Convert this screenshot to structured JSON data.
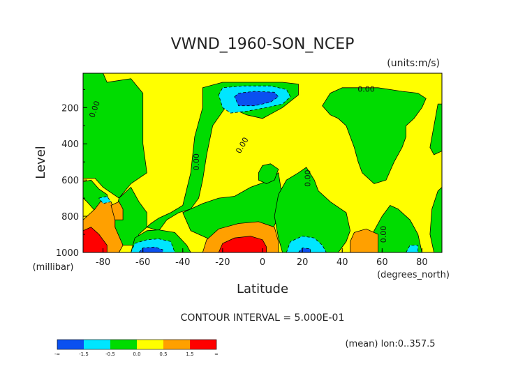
{
  "chart_data": {
    "type": "contour",
    "title": "VWND_1960-SON_NCEP",
    "units_label": "(units:m/s)",
    "xlabel": "Latitude",
    "x_units_label": "(degrees_north)",
    "ylabel": "Level",
    "y_units_label": "(millibar)",
    "xlim": [
      -90,
      90
    ],
    "ylim": [
      1000,
      10
    ],
    "y_inverted": true,
    "x_ticks": [
      -80,
      -60,
      -40,
      -20,
      0,
      20,
      40,
      60,
      80
    ],
    "y_ticks": [
      200,
      400,
      600,
      800,
      1000
    ],
    "contour_interval_text": "CONTOUR INTERVAL = 5.000E-01",
    "footer_text": "(mean) lon:0..357.5",
    "colorbar": {
      "bins": [
        {
          "color": "#0a50f0"
        },
        {
          "color": "#00e6ff"
        },
        {
          "color": "#00dc00"
        },
        {
          "color": "#ffff00"
        },
        {
          "color": "#ffa000"
        },
        {
          "color": "#ff0000"
        }
      ],
      "labels": [
        "-∞",
        "-1.5",
        "-0.5",
        "0.0",
        "0.5",
        "1.5",
        "∞"
      ]
    },
    "contour_labels": [
      {
        "text": "0.00",
        "lat": -84,
        "lev": 210,
        "angle": -70
      },
      {
        "text": "0.00",
        "lat": -33,
        "lev": 500,
        "angle": -90
      },
      {
        "text": "0.00",
        "lat": -10,
        "lev": 410,
        "angle": -60
      },
      {
        "text": "0.00",
        "lat": 52,
        "lev": 100,
        "angle": 0
      },
      {
        "text": "0.00",
        "lat": 23,
        "lev": 590,
        "angle": -90
      },
      {
        "text": "0.00",
        "lat": 61,
        "lev": 900,
        "angle": -90
      }
    ],
    "regions": [
      {
        "value": 0.25,
        "points": [
          [
            -90,
            10
          ],
          [
            90,
            10
          ],
          [
            90,
            1000
          ],
          [
            -90,
            1000
          ]
        ]
      },
      {
        "value": -0.25,
        "points": [
          [
            -90,
            10
          ],
          [
            -80,
            10
          ],
          [
            -78,
            60
          ],
          [
            -66,
            40
          ],
          [
            -60,
            120
          ],
          [
            -60,
            400
          ],
          [
            -58,
            560
          ],
          [
            -66,
            620
          ],
          [
            -72,
            700
          ],
          [
            -80,
            640
          ],
          [
            -84,
            590
          ],
          [
            -90,
            590
          ]
        ]
      },
      {
        "value": -0.25,
        "points": [
          [
            -90,
            610
          ],
          [
            -86,
            600
          ],
          [
            -82,
            650
          ],
          [
            -78,
            680
          ],
          [
            -76,
            760
          ],
          [
            -84,
            770
          ],
          [
            -88,
            720
          ],
          [
            -90,
            700
          ]
        ]
      },
      {
        "value": -0.25,
        "points": [
          [
            -72,
            700
          ],
          [
            -66,
            640
          ],
          [
            -62,
            720
          ],
          [
            -58,
            780
          ],
          [
            -58,
            860
          ],
          [
            -52,
            880
          ],
          [
            -48,
            820
          ],
          [
            -42,
            780
          ],
          [
            -36,
            760
          ],
          [
            -32,
            700
          ],
          [
            -30,
            600
          ],
          [
            -28,
            460
          ],
          [
            -25,
            300
          ],
          [
            -18,
            190
          ],
          [
            -8,
            240
          ],
          [
            0,
            260
          ],
          [
            10,
            200
          ],
          [
            18,
            130
          ],
          [
            18,
            70
          ],
          [
            10,
            60
          ],
          [
            -20,
            60
          ],
          [
            -30,
            90
          ],
          [
            -30,
            200
          ],
          [
            -34,
            360
          ],
          [
            -36,
            560
          ],
          [
            -40,
            740
          ],
          [
            -46,
            780
          ],
          [
            -52,
            810
          ],
          [
            -56,
            840
          ],
          [
            -62,
            900
          ],
          [
            -64,
            960
          ],
          [
            -70,
            960
          ],
          [
            -74,
            880
          ],
          [
            -74,
            800
          ]
        ]
      },
      {
        "value": -0.25,
        "points": [
          [
            -66,
            1000
          ],
          [
            -64,
            920
          ],
          [
            -58,
            880
          ],
          [
            -52,
            875
          ],
          [
            -44,
            890
          ],
          [
            -38,
            960
          ],
          [
            -36,
            1000
          ]
        ]
      },
      {
        "value": -0.25,
        "points": [
          [
            -40,
            780
          ],
          [
            -30,
            730
          ],
          [
            -22,
            700
          ],
          [
            -14,
            690
          ],
          [
            -6,
            640
          ],
          [
            4,
            600
          ],
          [
            8,
            560
          ],
          [
            10,
            700
          ],
          [
            8,
            800
          ],
          [
            4,
            900
          ],
          [
            0,
            940
          ],
          [
            -18,
            950
          ],
          [
            -26,
            930
          ],
          [
            -36,
            880
          ]
        ]
      },
      {
        "value": -0.25,
        "points": [
          [
            8,
            680
          ],
          [
            12,
            600
          ],
          [
            18,
            560
          ],
          [
            22,
            530
          ],
          [
            26,
            600
          ],
          [
            28,
            660
          ],
          [
            34,
            720
          ],
          [
            42,
            780
          ],
          [
            44,
            880
          ],
          [
            42,
            940
          ],
          [
            38,
            1000
          ],
          [
            10,
            1000
          ],
          [
            8,
            920
          ],
          [
            6,
            800
          ]
        ]
      },
      {
        "value": -0.25,
        "points": [
          [
            30,
            190
          ],
          [
            34,
            120
          ],
          [
            40,
            90
          ],
          [
            58,
            90
          ],
          [
            70,
            110
          ],
          [
            78,
            120
          ],
          [
            82,
            150
          ],
          [
            80,
            200
          ],
          [
            76,
            260
          ],
          [
            72,
            300
          ],
          [
            72,
            360
          ],
          [
            70,
            420
          ],
          [
            66,
            500
          ],
          [
            62,
            600
          ],
          [
            56,
            620
          ],
          [
            50,
            560
          ],
          [
            48,
            500
          ],
          [
            46,
            420
          ],
          [
            42,
            300
          ],
          [
            38,
            260
          ],
          [
            34,
            240
          ]
        ]
      },
      {
        "value": -0.25,
        "points": [
          [
            52,
            1000
          ],
          [
            56,
            880
          ],
          [
            60,
            800
          ],
          [
            64,
            740
          ],
          [
            68,
            760
          ],
          [
            74,
            820
          ],
          [
            78,
            900
          ],
          [
            80,
            1000
          ]
        ]
      },
      {
        "value": -0.25,
        "points": [
          [
            84,
            420
          ],
          [
            86,
            300
          ],
          [
            88,
            180
          ],
          [
            90,
            180
          ],
          [
            90,
            440
          ],
          [
            86,
            460
          ]
        ]
      },
      {
        "value": -0.25,
        "points": [
          [
            86,
            1000
          ],
          [
            84,
            900
          ],
          [
            85,
            760
          ],
          [
            88,
            660
          ],
          [
            90,
            640
          ],
          [
            90,
            1000
          ]
        ]
      },
      {
        "value": -0.25,
        "points": [
          [
            -2,
            560
          ],
          [
            0,
            520
          ],
          [
            4,
            510
          ],
          [
            8,
            540
          ],
          [
            6,
            600
          ],
          [
            2,
            620
          ],
          [
            -2,
            600
          ]
        ]
      },
      {
        "value": 0.75,
        "points": [
          [
            -84,
            760
          ],
          [
            -80,
            700
          ],
          [
            -76,
            720
          ],
          [
            -74,
            780
          ],
          [
            -74,
            860
          ],
          [
            -70,
            960
          ],
          [
            -72,
            1000
          ],
          [
            -90,
            1000
          ],
          [
            -90,
            820
          ]
        ]
      },
      {
        "value": 0.75,
        "points": [
          [
            -76,
            740
          ],
          [
            -72,
            720
          ],
          [
            -70,
            760
          ],
          [
            -70,
            820
          ],
          [
            -74,
            820
          ]
        ]
      },
      {
        "value": 0.75,
        "points": [
          [
            -30,
            1000
          ],
          [
            -28,
            930
          ],
          [
            -22,
            870
          ],
          [
            -12,
            840
          ],
          [
            -2,
            830
          ],
          [
            6,
            860
          ],
          [
            8,
            940
          ],
          [
            8,
            1000
          ]
        ]
      },
      {
        "value": 0.75,
        "points": [
          [
            44,
            1000
          ],
          [
            44,
            940
          ],
          [
            46,
            890
          ],
          [
            52,
            870
          ],
          [
            58,
            900
          ],
          [
            58,
            1000
          ]
        ]
      },
      {
        "value": 1.75,
        "points": [
          [
            -90,
            880
          ],
          [
            -86,
            860
          ],
          [
            -82,
            900
          ],
          [
            -78,
            960
          ],
          [
            -78,
            1000
          ],
          [
            -90,
            1000
          ]
        ]
      },
      {
        "value": 1.75,
        "points": [
          [
            -22,
            1000
          ],
          [
            -20,
            950
          ],
          [
            -14,
            920
          ],
          [
            -6,
            910
          ],
          [
            0,
            930
          ],
          [
            2,
            970
          ],
          [
            2,
            1000
          ]
        ]
      },
      {
        "value": -0.75,
        "points": [
          [
            -22,
            130
          ],
          [
            -20,
            90
          ],
          [
            -10,
            80
          ],
          [
            4,
            80
          ],
          [
            12,
            100
          ],
          [
            14,
            140
          ],
          [
            10,
            180
          ],
          [
            2,
            200
          ],
          [
            -8,
            220
          ],
          [
            -16,
            230
          ],
          [
            -20,
            200
          ]
        ]
      },
      {
        "value": -0.75,
        "points": [
          [
            -66,
            1000
          ],
          [
            -64,
            950
          ],
          [
            -58,
            930
          ],
          [
            -52,
            925
          ],
          [
            -46,
            940
          ],
          [
            -44,
            1000
          ]
        ]
      },
      {
        "value": -0.75,
        "points": [
          [
            12,
            1000
          ],
          [
            14,
            940
          ],
          [
            20,
            910
          ],
          [
            26,
            920
          ],
          [
            30,
            960
          ],
          [
            32,
            1000
          ]
        ]
      },
      {
        "value": -0.75,
        "points": [
          [
            -82,
            700
          ],
          [
            -78,
            690
          ],
          [
            -76,
            720
          ],
          [
            -80,
            730
          ]
        ]
      },
      {
        "value": -0.75,
        "points": [
          [
            72,
            1000
          ],
          [
            74,
            960
          ],
          [
            78,
            960
          ],
          [
            78,
            1000
          ]
        ]
      },
      {
        "value": -1.75,
        "points": [
          [
            -14,
            140
          ],
          [
            -12,
            120
          ],
          [
            -4,
            110
          ],
          [
            6,
            115
          ],
          [
            8,
            140
          ],
          [
            4,
            170
          ],
          [
            -4,
            190
          ],
          [
            -12,
            190
          ]
        ]
      },
      {
        "value": -1.75,
        "points": [
          [
            -62,
            1000
          ],
          [
            -60,
            975
          ],
          [
            -54,
            970
          ],
          [
            -50,
            985
          ],
          [
            -50,
            1000
          ]
        ]
      },
      {
        "value": -1.75,
        "points": [
          [
            18,
            1000
          ],
          [
            20,
            975
          ],
          [
            24,
            980
          ],
          [
            24,
            1000
          ]
        ]
      }
    ]
  }
}
